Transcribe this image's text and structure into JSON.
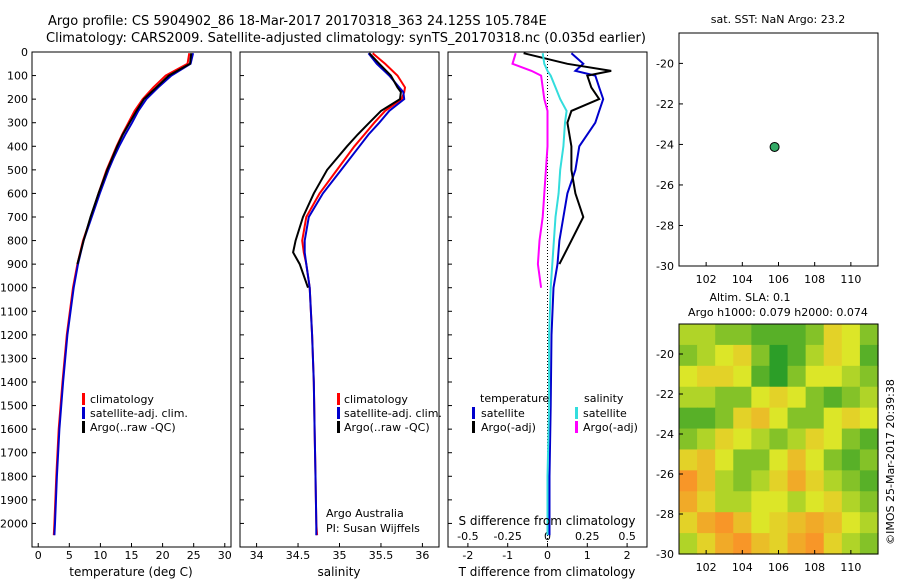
{
  "title": {
    "line1": "Argo profile: CS 5904902_86 18-Mar-2017 20170318_363 24.125S 105.784E",
    "line2": "Climatology: CARS2009. Satellite-adjusted climatology: synTS_20170318.nc (0.035d earlier)"
  },
  "colors": {
    "climatology": "#ff0000",
    "satellite": "#0000cc",
    "argo": "#000000",
    "salinity_satellite": "#33dddd",
    "salinity_argo": "#ff00ff",
    "seal_lo": "#ff8000",
    "seal_hi": "#008000",
    "argo_dot": "#33aa66"
  },
  "chart_data": [
    {
      "id": "temperature",
      "type": "line",
      "xlabel": "temperature (deg C)",
      "ylabel": "",
      "xlim": [
        -1,
        31
      ],
      "ylim": [
        2100,
        0
      ],
      "xticks": [
        "0",
        "5",
        "10",
        "15",
        "20",
        "25",
        "30"
      ],
      "yticks": [
        "0",
        "100",
        "200",
        "300",
        "400",
        "500",
        "600",
        "700",
        "800",
        "900",
        "1000",
        "1100",
        "1200",
        "1300",
        "1400",
        "1500",
        "1600",
        "1700",
        "1800",
        "1900",
        "2000"
      ],
      "depth": [
        5,
        50,
        100,
        150,
        200,
        250,
        300,
        350,
        400,
        450,
        500,
        600,
        700,
        800,
        900,
        1000,
        1200,
        1400,
        1600,
        1800,
        2000,
        2050
      ],
      "series": [
        {
          "name": "climatology",
          "values": [
            24.3,
            24.0,
            20.5,
            18.5,
            16.8,
            15.5,
            14.5,
            13.5,
            12.6,
            11.8,
            11.0,
            9.7,
            8.5,
            7.2,
            6.3,
            5.6,
            4.6,
            3.9,
            3.3,
            2.9,
            2.6,
            2.5
          ]
        },
        {
          "name": "satellite-adj. clim.",
          "values": [
            24.9,
            24.5,
            21.4,
            19.3,
            17.4,
            16.1,
            15.1,
            14.0,
            13.0,
            12.1,
            11.3,
            9.9,
            8.6,
            7.3,
            6.4,
            5.7,
            4.7,
            4.0,
            3.4,
            3.0,
            2.7,
            2.6
          ]
        },
        {
          "name": "Argo(..raw -QC)",
          "values": [
            24.6,
            24.4,
            21.0,
            19.0,
            17.0,
            15.8,
            14.7,
            13.6,
            12.7,
            11.9,
            11.1,
            9.7,
            8.4,
            7.3,
            6.3,
            null,
            null,
            null,
            null,
            null,
            null,
            null
          ]
        }
      ],
      "legend": [
        "climatology",
        "satellite-adj. clim.",
        "Argo(..raw -QC)"
      ]
    },
    {
      "id": "salinity",
      "type": "line",
      "xlabel": "salinity",
      "xlim": [
        33.8,
        36.2
      ],
      "ylim": [
        2100,
        0
      ],
      "xticks": [
        "34",
        "34.5",
        "35",
        "35.5",
        "36"
      ],
      "depth": [
        5,
        50,
        100,
        150,
        170,
        200,
        250,
        300,
        350,
        400,
        500,
        600,
        700,
        800,
        850,
        900,
        1000,
        1200,
        1400,
        1600,
        1800,
        2000,
        2050
      ],
      "series": [
        {
          "name": "climatology",
          "values": [
            35.4,
            35.55,
            35.7,
            35.79,
            35.78,
            35.75,
            35.55,
            35.42,
            35.3,
            35.18,
            34.97,
            34.76,
            34.6,
            34.55,
            34.57,
            34.6,
            34.64,
            34.67,
            34.69,
            34.7,
            34.71,
            34.72,
            34.73
          ]
        },
        {
          "name": "satellite-adj. clim.",
          "values": [
            35.35,
            35.45,
            35.6,
            35.72,
            35.77,
            35.78,
            35.6,
            35.48,
            35.35,
            35.24,
            35.02,
            34.8,
            34.63,
            34.58,
            34.58,
            34.6,
            34.64,
            34.67,
            34.69,
            34.7,
            34.71,
            34.72,
            34.72
          ]
        },
        {
          "name": "Argo(..raw -QC)",
          "values": [
            35.36,
            35.48,
            35.62,
            35.7,
            35.74,
            35.73,
            35.5,
            35.36,
            35.22,
            35.09,
            34.85,
            34.69,
            34.56,
            34.47,
            34.44,
            34.52,
            34.62,
            null,
            null,
            null,
            null,
            null,
            null
          ]
        }
      ],
      "legend": [
        "climatology",
        "satellite-adj. clim.",
        "Argo(..raw -QC)"
      ],
      "annotation": [
        "Argo Australia",
        "PI: Susan Wijffels"
      ]
    },
    {
      "id": "difference",
      "type": "line",
      "xlabel": "T difference from climatology",
      "xlabel2": "S difference from climatology",
      "xlim_T": [
        -2.5,
        2.5
      ],
      "xticks_T": [
        "-2",
        "-1",
        "0",
        "1",
        "2"
      ],
      "xticks_S": [
        "-0.5",
        "-0.25",
        "0",
        "0.25",
        "0.5"
      ],
      "ylim": [
        2100,
        0
      ],
      "depth": [
        5,
        50,
        80,
        100,
        150,
        200,
        250,
        300,
        400,
        500,
        600,
        700,
        800,
        900,
        1000,
        1200,
        1500,
        1800,
        2000,
        2050
      ],
      "series": [
        {
          "name": "temperature satellite",
          "values": [
            0.6,
            0.9,
            0.7,
            1.2,
            1.3,
            1.4,
            1.3,
            1.2,
            0.8,
            0.7,
            0.5,
            0.4,
            0.3,
            0.25,
            0.15,
            0.1,
            0.08,
            0.05,
            0.05,
            0.05
          ]
        },
        {
          "name": "temperature Argo(-adj)",
          "values": [
            -0.6,
            0.5,
            1.6,
            1.0,
            1.1,
            1.3,
            0.6,
            0.5,
            0.6,
            0.6,
            0.7,
            0.9,
            0.6,
            0.3,
            null,
            null,
            null,
            null,
            null,
            null
          ]
        },
        {
          "name": "salinity satellite",
          "values": [
            -0.03,
            -0.02,
            0.0,
            0.02,
            0.05,
            0.08,
            0.12,
            0.11,
            0.1,
            0.08,
            0.07,
            0.05,
            0.04,
            0.03,
            0.02,
            0.01,
            0.01,
            0.0,
            0.0,
            0.0
          ]
        },
        {
          "name": "salinity Argo(-adj)",
          "values": [
            -0.2,
            -0.22,
            -0.1,
            -0.04,
            -0.03,
            -0.02,
            0.0,
            0.0,
            0.0,
            -0.01,
            -0.02,
            -0.03,
            -0.05,
            -0.06,
            -0.04,
            null,
            null,
            null,
            null,
            null
          ]
        }
      ],
      "legend_headers": [
        "temperature",
        "salinity"
      ],
      "legend_T": [
        "satellite",
        "Argo(-adj)"
      ],
      "legend_S": [
        "satellite",
        "Argo(-adj)"
      ]
    },
    {
      "id": "location",
      "type": "scatter",
      "title": "sat. SST: NaN Argo: 23.2",
      "xlim": [
        100.5,
        111.5
      ],
      "ylim": [
        -30,
        -18.5
      ],
      "xticks": [
        "102",
        "104",
        "106",
        "108",
        "110"
      ],
      "yticks": [
        "-20",
        "-22",
        "-24",
        "-26",
        "-28",
        "-30"
      ],
      "points": [
        {
          "x": 105.784,
          "y": -24.125
        }
      ]
    },
    {
      "id": "altimetry",
      "type": "heatmap",
      "title1": "Altim. SLA: 0.1",
      "title2": "Argo h1000: 0.079 h2000: 0.074",
      "xlim": [
        100.5,
        111.5
      ],
      "ylim": [
        -30,
        -18.5
      ],
      "xticks": [
        "102",
        "104",
        "106",
        "108",
        "110"
      ],
      "yticks": [
        "-20",
        "-22",
        "-24",
        "-26",
        "-28",
        "-30"
      ],
      "rows_north_to_south": [
        [
          0.4,
          0.4,
          0.3,
          0.3,
          0.2,
          0.2,
          0.2,
          0.3,
          0.6,
          0.5,
          0.3
        ],
        [
          0.3,
          0.4,
          0.5,
          0.6,
          0.3,
          0.1,
          0.2,
          0.4,
          0.6,
          0.5,
          0.2
        ],
        [
          0.5,
          0.6,
          0.6,
          0.5,
          0.2,
          0.1,
          0.3,
          0.5,
          0.5,
          0.4,
          0.3
        ],
        [
          0.4,
          0.4,
          0.3,
          0.3,
          0.5,
          0.6,
          0.5,
          0.3,
          0.2,
          0.3,
          0.4
        ],
        [
          0.2,
          0.2,
          0.3,
          0.6,
          0.7,
          0.5,
          0.3,
          0.3,
          0.5,
          0.6,
          0.5
        ],
        [
          0.3,
          0.4,
          0.6,
          0.5,
          0.4,
          0.3,
          0.4,
          0.6,
          0.5,
          0.3,
          0.2
        ],
        [
          0.6,
          0.7,
          0.5,
          0.3,
          0.3,
          0.5,
          0.7,
          0.5,
          0.3,
          0.2,
          0.3
        ],
        [
          0.9,
          0.7,
          0.4,
          0.3,
          0.4,
          0.6,
          0.8,
          0.6,
          0.4,
          0.3,
          0.2
        ],
        [
          0.8,
          0.6,
          0.4,
          0.4,
          0.5,
          0.5,
          0.4,
          0.5,
          0.6,
          0.4,
          0.3
        ],
        [
          0.6,
          0.8,
          0.9,
          0.7,
          0.5,
          0.6,
          0.7,
          0.8,
          0.7,
          0.5,
          0.4
        ],
        [
          0.4,
          0.6,
          0.8,
          0.9,
          0.7,
          0.6,
          0.8,
          0.9,
          0.6,
          0.4,
          0.3
        ]
      ]
    }
  ],
  "side_label": "©IMOS 25-Mar-2017 20:39:38"
}
